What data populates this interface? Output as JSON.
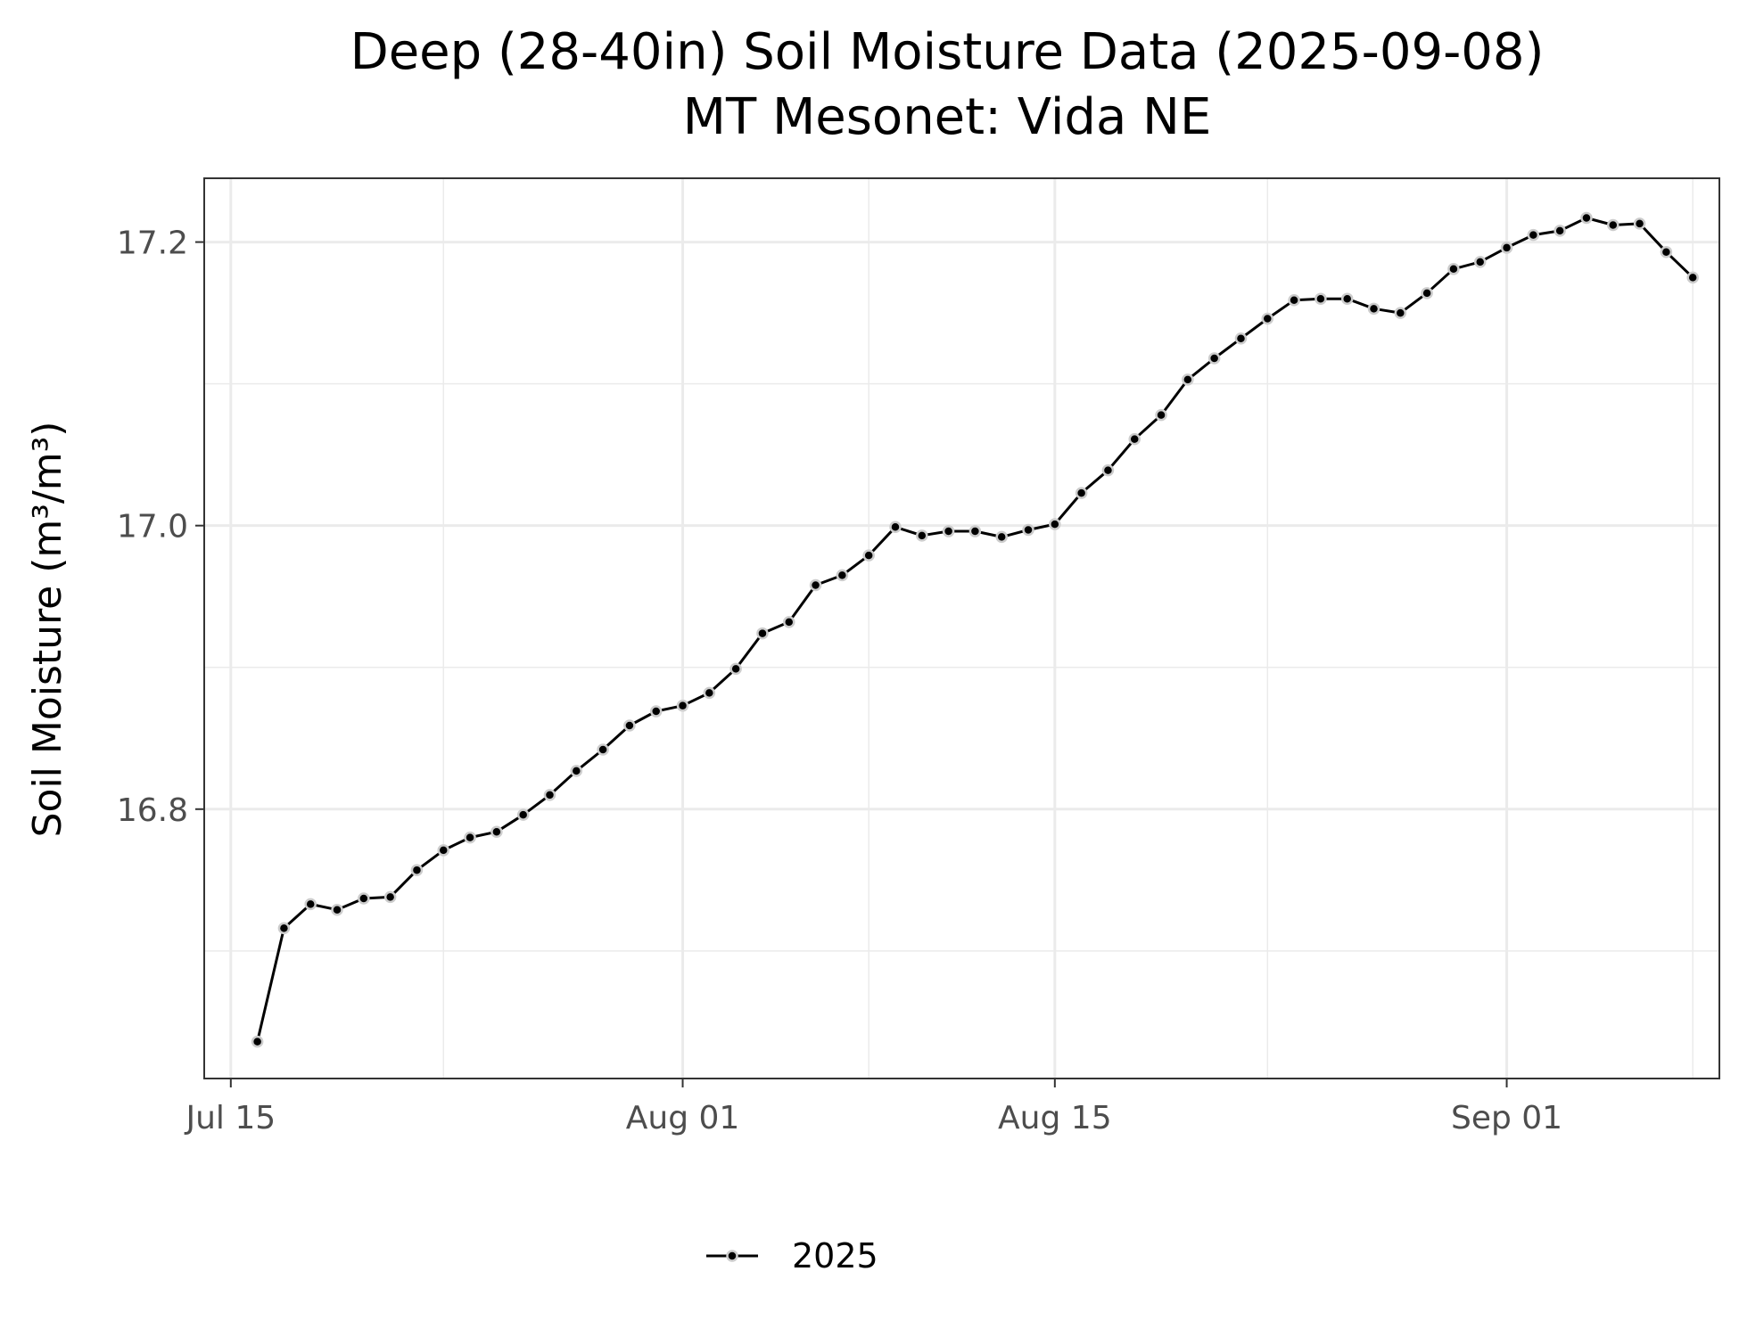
{
  "chart_data": {
    "type": "line",
    "title": "Deep (28-40in) Soil Moisture Data (2025-09-08)",
    "subtitle": "MT Mesonet: Vida NE",
    "xlabel": "",
    "ylabel": "Soil Moisture (m³/m³)",
    "xlim": [
      "2025-07-14",
      "2025-09-09"
    ],
    "ylim": [
      16.61,
      17.245
    ],
    "x_ticks": [
      {
        "date": "2025-07-15",
        "label": "Jul 15"
      },
      {
        "date": "2025-08-01",
        "label": "Aug 01"
      },
      {
        "date": "2025-08-15",
        "label": "Aug 15"
      },
      {
        "date": "2025-09-01",
        "label": "Sep 01"
      }
    ],
    "x_minor_ticks": [
      "2025-07-23",
      "2025-08-08",
      "2025-08-23",
      "2025-09-08"
    ],
    "y_ticks": [
      16.8,
      17.0,
      17.2
    ],
    "y_minor_ticks": [
      16.7,
      16.9,
      17.1
    ],
    "grid": true,
    "legend_position": "bottom",
    "line_color": "#000000",
    "point_fill": "#000000",
    "point_outline": "#cccccc",
    "series": [
      {
        "name": "2025",
        "x": [
          "2025-07-16",
          "2025-07-17",
          "2025-07-18",
          "2025-07-19",
          "2025-07-20",
          "2025-07-21",
          "2025-07-22",
          "2025-07-23",
          "2025-07-24",
          "2025-07-25",
          "2025-07-26",
          "2025-07-27",
          "2025-07-28",
          "2025-07-29",
          "2025-07-30",
          "2025-07-31",
          "2025-08-01",
          "2025-08-02",
          "2025-08-03",
          "2025-08-04",
          "2025-08-05",
          "2025-08-06",
          "2025-08-07",
          "2025-08-08",
          "2025-08-09",
          "2025-08-10",
          "2025-08-11",
          "2025-08-12",
          "2025-08-13",
          "2025-08-14",
          "2025-08-15",
          "2025-08-16",
          "2025-08-17",
          "2025-08-18",
          "2025-08-19",
          "2025-08-20",
          "2025-08-21",
          "2025-08-22",
          "2025-08-23",
          "2025-08-24",
          "2025-08-25",
          "2025-08-26",
          "2025-08-27",
          "2025-08-28",
          "2025-08-29",
          "2025-08-30",
          "2025-08-31",
          "2025-09-01",
          "2025-09-02",
          "2025-09-03",
          "2025-09-04",
          "2025-09-05",
          "2025-09-06",
          "2025-09-07",
          "2025-09-08"
        ],
        "y": [
          16.636,
          16.716,
          16.733,
          16.729,
          16.737,
          16.738,
          16.757,
          16.771,
          16.78,
          16.784,
          16.796,
          16.81,
          16.827,
          16.842,
          16.859,
          16.869,
          16.873,
          16.882,
          16.899,
          16.924,
          16.932,
          16.958,
          16.965,
          16.979,
          16.999,
          16.993,
          16.996,
          16.996,
          16.992,
          16.997,
          17.001,
          17.023,
          17.039,
          17.061,
          17.078,
          17.103,
          17.118,
          17.132,
          17.146,
          17.159,
          17.16,
          17.16,
          17.153,
          17.15,
          17.164,
          17.181,
          17.186,
          17.196,
          17.205,
          17.208,
          17.217,
          17.212,
          17.213,
          17.193,
          17.175
        ]
      }
    ]
  }
}
